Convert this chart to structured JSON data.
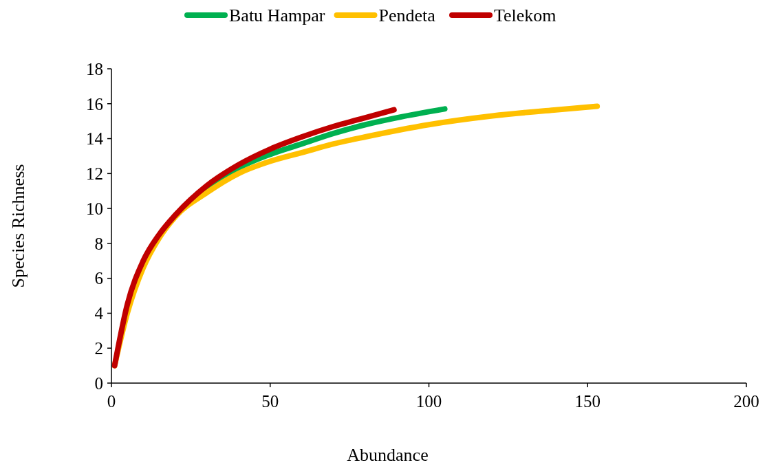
{
  "chart_data": {
    "type": "line",
    "xlabel": "Abundance",
    "ylabel": "Species Richness",
    "xlim": [
      0,
      200
    ],
    "xticks": [
      0,
      50,
      100,
      150,
      200
    ],
    "ylim": [
      0,
      18
    ],
    "yticks": [
      0,
      2,
      4,
      6,
      8,
      10,
      12,
      14,
      16,
      18
    ],
    "grid": false,
    "legend": "top",
    "marker": "none",
    "line_style": "solid",
    "series": [
      {
        "name": "Batu Hampar",
        "color": "#00b050",
        "x": [
          30,
          40,
          50,
          60,
          70,
          80,
          90,
          105
        ],
        "values": [
          11.0,
          12.3,
          13.1,
          13.7,
          14.3,
          14.8,
          15.2,
          15.7
        ]
      },
      {
        "name": "Pendeta",
        "color": "#ffc000",
        "x": [
          1,
          5,
          10,
          15,
          20,
          30,
          40,
          50,
          60,
          70,
          80,
          100,
          120,
          140,
          153
        ],
        "values": [
          1,
          4.0,
          6.6,
          8.3,
          9.5,
          10.9,
          12.0,
          12.7,
          13.2,
          13.7,
          14.1,
          14.8,
          15.3,
          15.65,
          15.85
        ]
      },
      {
        "name": "Telekom",
        "color": "#c00000",
        "x": [
          1,
          5,
          10,
          15,
          20,
          30,
          40,
          50,
          60,
          70,
          80,
          89
        ],
        "values": [
          1,
          4.5,
          7,
          8.5,
          9.6,
          11.3,
          12.5,
          13.4,
          14.1,
          14.7,
          15.2,
          15.65
        ]
      }
    ]
  }
}
